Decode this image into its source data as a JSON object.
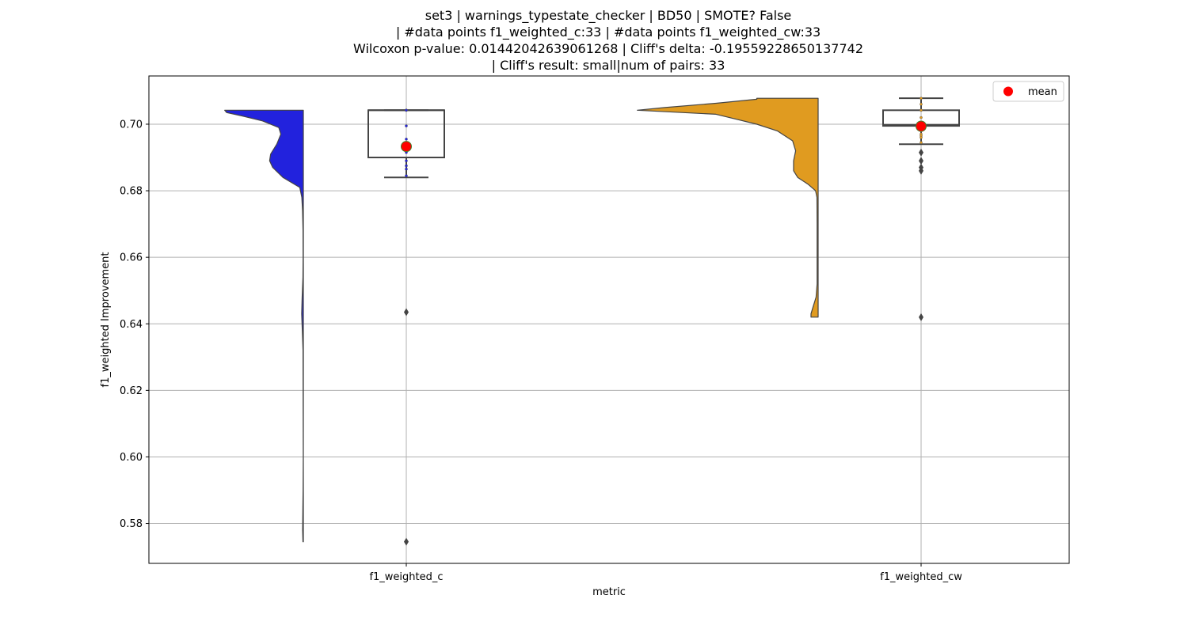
{
  "chart_data": {
    "type": "violin",
    "title_lines": [
      "set3 | warnings_typestate_checker | BD50 | SMOTE? False",
      "| #data points f1_weighted_c:33 | #data points f1_weighted_cw:33",
      "Wilcoxon p-value: 0.01442042639061268 | Cliff's delta: -0.19559228650137742",
      "| Cliff's result: small|num of pairs: 33"
    ],
    "xlabel": "metric",
    "ylabel": "f1_weighted Improvement",
    "categories": [
      "f1_weighted_c",
      "f1_weighted_cw"
    ],
    "ylim": [
      0.568,
      0.7145
    ],
    "yticks": [
      "0.58",
      "0.60",
      "0.62",
      "0.64",
      "0.66",
      "0.68",
      "0.70"
    ],
    "grid": true,
    "legend": {
      "position": "top-right",
      "entries": [
        {
          "label": "mean",
          "color": "#ff0000"
        }
      ]
    },
    "series": [
      {
        "category": "f1_weighted_c",
        "color": "#2222dd",
        "violin_profile": [
          [
            0.5745,
            0.004
          ],
          [
            0.578,
            0.007
          ],
          [
            0.585,
            0.005
          ],
          [
            0.59,
            0.002
          ],
          [
            0.6,
            0.001
          ],
          [
            0.62,
            0.002
          ],
          [
            0.632,
            0.003
          ],
          [
            0.638,
            0.01
          ],
          [
            0.643,
            0.016
          ],
          [
            0.648,
            0.012
          ],
          [
            0.654,
            0.004
          ],
          [
            0.66,
            0.002
          ],
          [
            0.668,
            0.003
          ],
          [
            0.674,
            0.008
          ],
          [
            0.678,
            0.015
          ],
          [
            0.681,
            0.035
          ],
          [
            0.684,
            0.2
          ],
          [
            0.687,
            0.3
          ],
          [
            0.689,
            0.33
          ],
          [
            0.691,
            0.32
          ],
          [
            0.694,
            0.26
          ],
          [
            0.697,
            0.22
          ],
          [
            0.699,
            0.24
          ],
          [
            0.701,
            0.4
          ],
          [
            0.7025,
            0.6
          ],
          [
            0.7035,
            0.75
          ],
          [
            0.7042,
            0.77
          ]
        ],
        "box": {
          "q1": 0.69,
          "median": 0.7042,
          "q3": 0.7042,
          "whisker_low": 0.684,
          "whisker_high": 0.7042
        },
        "mean": 0.6933,
        "outliers": [
          0.6435,
          0.5745
        ],
        "points": [
          0.7042,
          0.7042,
          0.7042,
          0.7042,
          0.6995,
          0.6955,
          0.6945,
          0.693,
          0.6915,
          0.689,
          0.6875,
          0.6865,
          0.6845
        ]
      },
      {
        "category": "f1_weighted_cw",
        "color": "#e09b20",
        "violin_profile": [
          [
            0.642,
            0.07
          ],
          [
            0.643,
            0.07
          ],
          [
            0.645,
            0.05
          ],
          [
            0.648,
            0.02
          ],
          [
            0.652,
            0.01
          ],
          [
            0.66,
            0.01
          ],
          [
            0.67,
            0.01
          ],
          [
            0.678,
            0.012
          ],
          [
            0.68,
            0.025
          ],
          [
            0.682,
            0.1
          ],
          [
            0.684,
            0.2
          ],
          [
            0.686,
            0.24
          ],
          [
            0.689,
            0.24
          ],
          [
            0.692,
            0.22
          ],
          [
            0.695,
            0.25
          ],
          [
            0.698,
            0.4
          ],
          [
            0.7,
            0.6
          ],
          [
            0.7015,
            0.8
          ],
          [
            0.703,
            1.0
          ],
          [
            0.7042,
            1.77
          ],
          [
            0.705,
            1.5
          ],
          [
            0.7063,
            1.0
          ],
          [
            0.7075,
            0.6
          ],
          [
            0.7078,
            0.6
          ]
        ],
        "box": {
          "q1": 0.6995,
          "median": 0.6998,
          "q3": 0.7042,
          "whisker_low": 0.694,
          "whisker_high": 0.7078
        },
        "mean": 0.6994,
        "outliers": [
          0.6915,
          0.689,
          0.687,
          0.686,
          0.642
        ],
        "points": [
          0.7078,
          0.706,
          0.7042,
          0.7042,
          0.702,
          0.7,
          0.6995,
          0.699,
          0.698,
          0.697,
          0.6965,
          0.696,
          0.6945
        ]
      }
    ]
  }
}
